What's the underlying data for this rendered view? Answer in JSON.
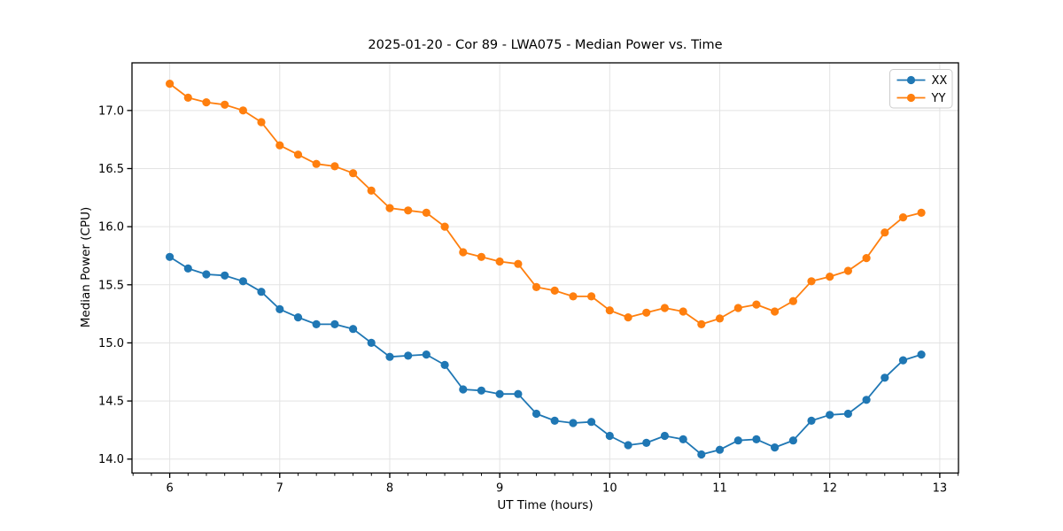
{
  "figure": {
    "background": "#ffffff",
    "spine_color": "#000000",
    "grid_color": "#e3e3e3"
  },
  "chart_data": {
    "type": "line",
    "title": "2025-01-20 - Cor 89 - LWA075 - Median Power vs. Time",
    "xlabel": "UT Time (hours)",
    "ylabel": "Median Power (CPU)",
    "xlim": [
      5.657,
      13.17
    ],
    "ylim": [
      13.88,
      17.41
    ],
    "x_ticks": [
      6,
      7,
      8,
      9,
      10,
      11,
      12,
      13
    ],
    "y_ticks": [
      14.0,
      14.5,
      15.0,
      15.5,
      16.0,
      16.5,
      17.0
    ],
    "x_minor_step": 0.1666667,
    "grid": true,
    "legend_position": "upper right",
    "marker": "circle",
    "x": [
      6.0,
      6.167,
      6.333,
      6.5,
      6.667,
      6.833,
      7.0,
      7.167,
      7.333,
      7.5,
      7.667,
      7.833,
      8.0,
      8.167,
      8.333,
      8.5,
      8.667,
      8.833,
      9.0,
      9.167,
      9.333,
      9.5,
      9.667,
      9.833,
      10.0,
      10.167,
      10.333,
      10.5,
      10.667,
      10.833,
      11.0,
      11.167,
      11.333,
      11.5,
      11.667,
      11.833,
      12.0,
      12.167,
      12.333,
      12.5,
      12.667,
      12.833
    ],
    "series": [
      {
        "name": "XX",
        "color": "#1f77b4",
        "values": [
          15.74,
          15.64,
          15.59,
          15.58,
          15.53,
          15.44,
          15.29,
          15.22,
          15.16,
          15.16,
          15.12,
          15.0,
          14.88,
          14.89,
          14.9,
          14.81,
          14.6,
          14.59,
          14.56,
          14.56,
          14.39,
          14.33,
          14.31,
          14.32,
          14.2,
          14.12,
          14.14,
          14.2,
          14.17,
          14.04,
          14.08,
          14.16,
          14.17,
          14.1,
          14.16,
          14.33,
          14.38,
          14.39,
          14.51,
          14.7,
          14.85,
          14.9
        ]
      },
      {
        "name": "YY",
        "color": "#ff7f0e",
        "values": [
          17.23,
          17.11,
          17.07,
          17.05,
          17.0,
          16.9,
          16.7,
          16.62,
          16.54,
          16.52,
          16.46,
          16.31,
          16.16,
          16.14,
          16.12,
          16.0,
          15.78,
          15.74,
          15.7,
          15.68,
          15.48,
          15.45,
          15.4,
          15.4,
          15.28,
          15.22,
          15.26,
          15.3,
          15.27,
          15.16,
          15.21,
          15.3,
          15.33,
          15.27,
          15.36,
          15.53,
          15.57,
          15.62,
          15.73,
          15.95,
          16.08,
          16.12
        ]
      }
    ]
  }
}
